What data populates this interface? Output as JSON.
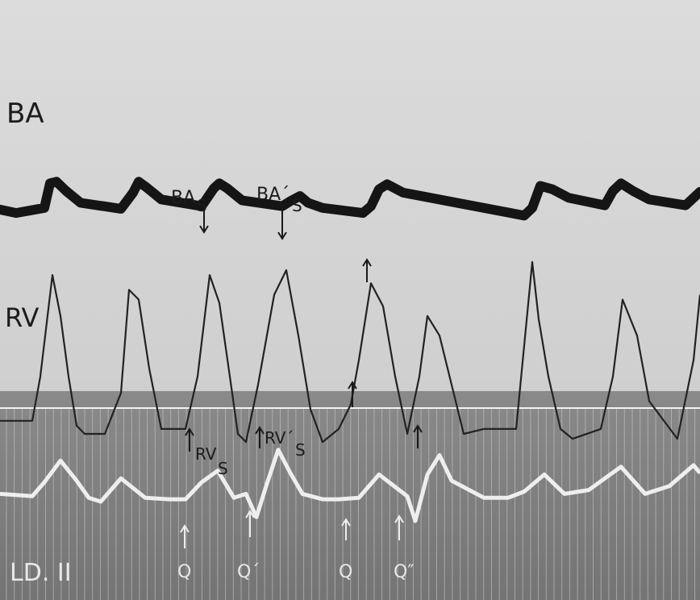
{
  "chart_data": {
    "type": "line",
    "title": "",
    "channel_labels": {
      "top": "BA",
      "middle": "RV",
      "bottom": "LD. II"
    },
    "annotations": {
      "ba_s": {
        "main": "BA",
        "sub": "S"
      },
      "ba_s_prime": {
        "main": "BA´",
        "sub": "S"
      },
      "rv_s": {
        "main": "RV",
        "sub": "S"
      },
      "rv_s_prime": {
        "main": "RV´",
        "sub": "S"
      },
      "q1": "Q",
      "q_prime": "Q´",
      "q3": "Q",
      "q_double_prime": "Q″"
    },
    "series": [
      {
        "name": "BA",
        "x": [
          0,
          20,
          55,
          62,
          70,
          82,
          100,
          150,
          165,
          172,
          182,
          200,
          250,
          265,
          272,
          282,
          300,
          350,
          360,
          372,
          382,
          400,
          450,
          460,
          470,
          480,
          500,
          650,
          660,
          670,
          685,
          705,
          750,
          760,
          770,
          785,
          805,
          850,
          868
        ],
        "y": [
          0.62,
          0.58,
          0.64,
          0.93,
          0.95,
          0.84,
          0.7,
          0.63,
          0.82,
          0.95,
          0.88,
          0.74,
          0.66,
          0.87,
          0.93,
          0.87,
          0.73,
          0.66,
          0.72,
          0.78,
          0.7,
          0.64,
          0.58,
          0.66,
          0.86,
          0.92,
          0.82,
          0.55,
          0.64,
          0.9,
          0.86,
          0.76,
          0.67,
          0.84,
          0.93,
          0.84,
          0.74,
          0.67,
          0.83
        ]
      },
      {
        "name": "RV",
        "x": [
          0,
          40,
          50,
          65,
          75,
          85,
          95,
          105,
          130,
          150,
          160,
          172,
          185,
          200,
          230,
          245,
          260,
          272,
          285,
          295,
          305,
          320,
          340,
          355,
          370,
          385,
          400,
          420,
          435,
          445,
          460,
          475,
          490,
          505,
          520,
          530,
          545,
          560,
          575,
          600,
          640,
          660,
          668,
          680,
          695,
          710,
          745,
          760,
          772,
          790,
          805,
          840,
          860,
          868
        ],
        "y": [
          0.08,
          0.08,
          0.35,
          0.97,
          0.72,
          0.35,
          0.05,
          0.0,
          0.0,
          0.25,
          0.88,
          0.82,
          0.4,
          0.03,
          0.03,
          0.35,
          0.97,
          0.8,
          0.35,
          0.0,
          -0.05,
          0.3,
          0.85,
          1.0,
          0.6,
          0.15,
          -0.05,
          0.03,
          0.18,
          0.45,
          0.92,
          0.78,
          0.35,
          0.0,
          0.35,
          0.72,
          0.6,
          0.3,
          0.0,
          0.03,
          0.03,
          1.05,
          0.7,
          0.35,
          0.03,
          -0.03,
          0.03,
          0.35,
          0.82,
          0.6,
          0.2,
          -0.03,
          0.45,
          0.85
        ]
      },
      {
        "name": "LD. II",
        "x": [
          0,
          40,
          55,
          75,
          95,
          110,
          125,
          150,
          180,
          210,
          230,
          250,
          270,
          290,
          305,
          318,
          330,
          345,
          360,
          375,
          400,
          420,
          445,
          470,
          495,
          505,
          515,
          530,
          545,
          560,
          600,
          630,
          650,
          675,
          700,
          730,
          770,
          800,
          830,
          860,
          868
        ],
        "y": [
          0.35,
          0.32,
          0.5,
          0.78,
          0.52,
          0.3,
          0.25,
          0.55,
          0.3,
          0.28,
          0.28,
          0.5,
          0.65,
          0.3,
          0.35,
          0.05,
          0.45,
          0.92,
          0.62,
          0.35,
          0.28,
          0.28,
          0.3,
          0.6,
          0.4,
          0.32,
          0.0,
          0.6,
          0.85,
          0.52,
          0.3,
          0.3,
          0.38,
          0.6,
          0.35,
          0.4,
          0.7,
          0.35,
          0.45,
          0.72,
          0.62
        ]
      }
    ]
  }
}
